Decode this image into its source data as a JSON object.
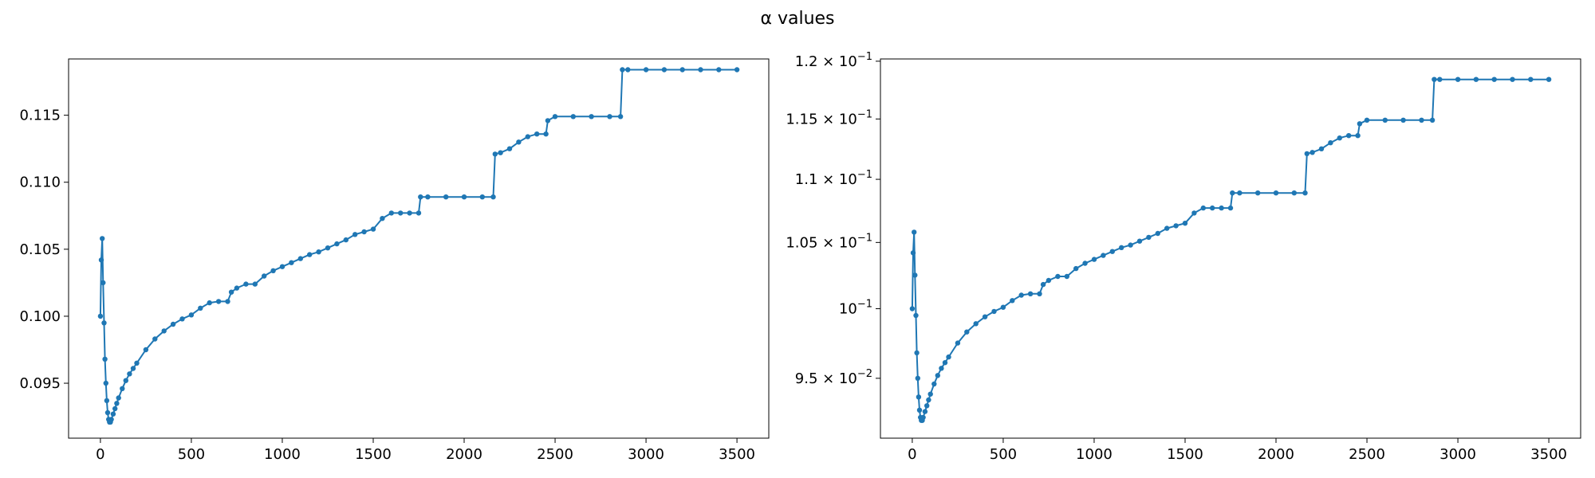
{
  "figure": {
    "title": "α values",
    "series_color": "#1f77b4"
  },
  "chart_data": [
    {
      "type": "line",
      "title": "",
      "xlabel": "",
      "ylabel": "",
      "xlim": [
        -175,
        3675
      ],
      "ylim": [
        0.0909,
        0.1192
      ],
      "yscale": "linear",
      "grid": false,
      "marker": "dot",
      "xticks": [
        0,
        500,
        1000,
        1500,
        2000,
        2500,
        3000,
        3500
      ],
      "xtick_labels": [
        "0",
        "500",
        "1000",
        "1500",
        "2000",
        "2500",
        "3000",
        "3500"
      ],
      "yticks": [
        0.095,
        0.1,
        0.105,
        0.11,
        0.115
      ],
      "ytick_labels": [
        "0.095",
        "0.100",
        "0.105",
        "0.110",
        "0.115"
      ],
      "series": [
        {
          "x": [
            0,
            5,
            10,
            15,
            20,
            25,
            30,
            35,
            40,
            45,
            50,
            55,
            60,
            70,
            80,
            90,
            100,
            120,
            140,
            160,
            180,
            200,
            250,
            300,
            350,
            400,
            450,
            500,
            550,
            600,
            650,
            700,
            720,
            750,
            800,
            850,
            900,
            950,
            1000,
            1050,
            1100,
            1150,
            1200,
            1250,
            1300,
            1350,
            1400,
            1450,
            1500,
            1550,
            1600,
            1650,
            1700,
            1750,
            1760,
            1800,
            1900,
            2000,
            2100,
            2160,
            2170,
            2200,
            2250,
            2300,
            2350,
            2400,
            2450,
            2460,
            2500,
            2600,
            2700,
            2800,
            2860,
            2870,
            2900,
            3000,
            3100,
            3200,
            3300,
            3400,
            3500
          ],
          "y": [
            0.1,
            0.1042,
            0.1058,
            0.1025,
            0.0995,
            0.0968,
            0.095,
            0.0937,
            0.0928,
            0.0923,
            0.0921,
            0.0921,
            0.0923,
            0.0927,
            0.0931,
            0.0935,
            0.0939,
            0.0946,
            0.0952,
            0.0957,
            0.0961,
            0.0965,
            0.0975,
            0.0983,
            0.0989,
            0.0994,
            0.0998,
            0.1001,
            0.1006,
            0.101,
            0.1011,
            0.1011,
            0.1018,
            0.1021,
            0.1024,
            0.1024,
            0.103,
            0.1034,
            0.1037,
            0.104,
            0.1043,
            0.1046,
            0.1048,
            0.1051,
            0.1054,
            0.1057,
            0.1061,
            0.1063,
            0.1065,
            0.1073,
            0.1077,
            0.1077,
            0.1077,
            0.1077,
            0.1089,
            0.1089,
            0.1089,
            0.1089,
            0.1089,
            0.1089,
            0.1121,
            0.1122,
            0.1125,
            0.113,
            0.1134,
            0.1136,
            0.1136,
            0.1146,
            0.1149,
            0.1149,
            0.1149,
            0.1149,
            0.1149,
            0.1184,
            0.1184,
            0.1184,
            0.1184,
            0.1184,
            0.1184,
            0.1184,
            0.1184
          ]
        }
      ]
    },
    {
      "type": "line",
      "title": "",
      "xlabel": "",
      "ylabel": "",
      "xlim": [
        -175,
        3675
      ],
      "ylim": [
        0.0909,
        0.1202
      ],
      "yscale": "log",
      "grid": false,
      "marker": "dot",
      "xticks": [
        0,
        500,
        1000,
        1500,
        2000,
        2500,
        3000,
        3500
      ],
      "xtick_labels": [
        "0",
        "500",
        "1000",
        "1500",
        "2000",
        "2500",
        "3000",
        "3500"
      ],
      "yticks": [
        0.095,
        0.1,
        0.105,
        0.11,
        0.115,
        0.12
      ],
      "ytick_labels": [
        {
          "mantissa": "9.5",
          "exponent": "−2"
        },
        {
          "mantissa": "",
          "exponent": "−1"
        },
        {
          "mantissa": "1.05",
          "exponent": "−1"
        },
        {
          "mantissa": "1.1",
          "exponent": "−1"
        },
        {
          "mantissa": "1.15",
          "exponent": "−1"
        },
        {
          "mantissa": "1.2",
          "exponent": "−1"
        }
      ],
      "series": [
        {
          "x": [
            0,
            5,
            10,
            15,
            20,
            25,
            30,
            35,
            40,
            45,
            50,
            55,
            60,
            70,
            80,
            90,
            100,
            120,
            140,
            160,
            180,
            200,
            250,
            300,
            350,
            400,
            450,
            500,
            550,
            600,
            650,
            700,
            720,
            750,
            800,
            850,
            900,
            950,
            1000,
            1050,
            1100,
            1150,
            1200,
            1250,
            1300,
            1350,
            1400,
            1450,
            1500,
            1550,
            1600,
            1650,
            1700,
            1750,
            1760,
            1800,
            1900,
            2000,
            2100,
            2160,
            2170,
            2200,
            2250,
            2300,
            2350,
            2400,
            2450,
            2460,
            2500,
            2600,
            2700,
            2800,
            2860,
            2870,
            2900,
            3000,
            3100,
            3200,
            3300,
            3400,
            3500
          ],
          "y": [
            0.1,
            0.1042,
            0.1058,
            0.1025,
            0.0995,
            0.0968,
            0.095,
            0.0937,
            0.0928,
            0.0923,
            0.0921,
            0.0921,
            0.0923,
            0.0927,
            0.0931,
            0.0935,
            0.0939,
            0.0946,
            0.0952,
            0.0957,
            0.0961,
            0.0965,
            0.0975,
            0.0983,
            0.0989,
            0.0994,
            0.0998,
            0.1001,
            0.1006,
            0.101,
            0.1011,
            0.1011,
            0.1018,
            0.1021,
            0.1024,
            0.1024,
            0.103,
            0.1034,
            0.1037,
            0.104,
            0.1043,
            0.1046,
            0.1048,
            0.1051,
            0.1054,
            0.1057,
            0.1061,
            0.1063,
            0.1065,
            0.1073,
            0.1077,
            0.1077,
            0.1077,
            0.1077,
            0.1089,
            0.1089,
            0.1089,
            0.1089,
            0.1089,
            0.1089,
            0.1121,
            0.1122,
            0.1125,
            0.113,
            0.1134,
            0.1136,
            0.1136,
            0.1146,
            0.1149,
            0.1149,
            0.1149,
            0.1149,
            0.1149,
            0.1184,
            0.1184,
            0.1184,
            0.1184,
            0.1184,
            0.1184,
            0.1184,
            0.1184
          ]
        }
      ]
    }
  ]
}
